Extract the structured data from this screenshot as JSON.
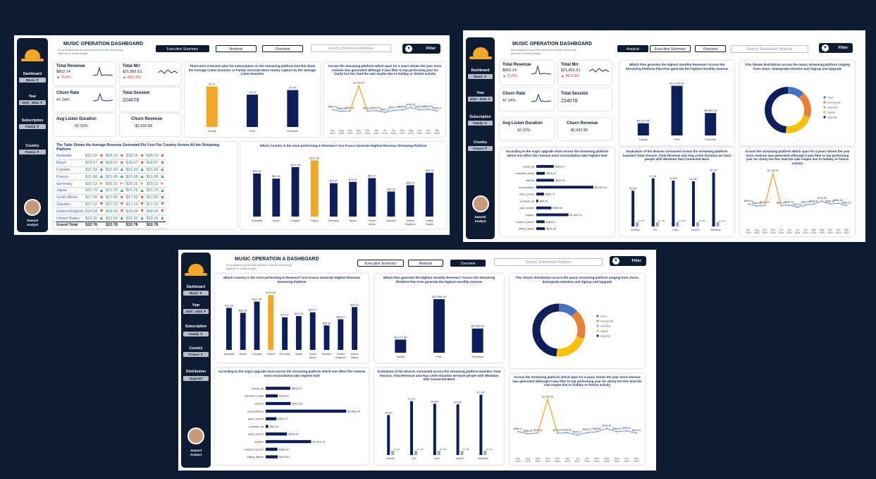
{
  "colors": {
    "navy": "#0d1b33",
    "bar": "#0c1f5c",
    "accent": "#f5a623",
    "line": "#6b8fd6",
    "churn": "#4472c4",
    "downgrade": "#ed7d31",
    "retention": "#a5a5a5",
    "signup": "#ffc000",
    "upgrade": "#0c1f5c"
  },
  "sidebar": {
    "dashboard_label": "Dashboard",
    "dashboard_value": "Music ▼",
    "year_label": "Year",
    "year_value": "2020 - 2024 ▼",
    "subscription_label": "Subscription",
    "subscription_value": "Family ▼",
    "country_label": "Country",
    "country_value": "France ▼",
    "distribution_label": "Distribution",
    "distribution_value": "Upgrade",
    "user_first": "Samuel",
    "user_last": "Analyst"
  },
  "header": {
    "title": "MUSIC OPERATION  DASHBOARD",
    "title3": "MUSIC OPERATION A DASHBOARD",
    "subtitle": "An analytical report that captures a music streaming platform & drives insight",
    "tab_exec": "Executive Summary",
    "tab_analysis": "Analysis",
    "tab_overview": "Overview",
    "search_placeholder": "Search, Dashboard, Analysis",
    "filter_label": "Filter"
  },
  "kpi": {
    "total_revenue_label": "Total Revenue",
    "total_revenue_value": "$852.14",
    "total_revenue_change": "▲ 71.6%",
    "total_mrr_label": "Total Mrr",
    "total_mrr_value": "$21,891.61",
    "total_mrr_change": "▲ 4113.4%",
    "churn_rate_label": "Churn Rate",
    "churn_rate_value": "47.14%",
    "total_session_label": "Total Session",
    "total_session_value": "224078",
    "avg_listen_label": "Avg Listen Duration",
    "avg_listen_value": "92.32%",
    "churn_revenue_label": "Churn Revenue",
    "churn_revenue_value": "-$2,432.86"
  },
  "charts": {
    "plan_avg": {
      "title": "There were 3 Section plan for subscription on the streaming platform but this show the Average Listen Duration i.e Family Generate More money capture by the Average Listen Duration",
      "categories": [
        "Family",
        "Free",
        "Premium"
      ],
      "values": [
        95.91,
        76.63,
        87.42
      ],
      "labels": [
        "95.91",
        "76.63",
        "87.42"
      ],
      "highlight": 0
    },
    "trend": {
      "title": "Across the streaming platform which span for 4 years shows the year more revenue was generated although it was filter to top performing year for clarity but Dec lead the sale maybe due to holiday or festive activity",
      "x": [
        "Apr 2024",
        "Aug 2024",
        "Dec 2024",
        "Dec 2024",
        "Feb 2024",
        "Jan 2024",
        "Jul 2024",
        "Jun 2024",
        "Mar 2024",
        "May 2024",
        "Nov 2024",
        "Oct 2024",
        "Sep 2024"
      ],
      "values": [
        659.41,
        586.36,
        609.4,
        1763.04,
        604.02,
        620.2,
        541.01,
        624.37,
        655.5,
        764.36,
        656.46,
        684.53,
        605.19
      ],
      "labels": [
        "$659.41",
        "$586.36",
        "$609.40",
        "$1,763.04",
        "$604.02",
        "$620.20",
        "$541.01",
        "$624.37",
        "$655.50",
        "$764.36",
        "$656.46",
        "$684.53",
        "$605.19"
      ]
    },
    "country": {
      "title": "Which Country is the most performing in Revenue? Ans France Generate Highest Revenue Streaming Platform",
      "categories": [
        "Australia",
        "Brazil",
        "Canada",
        "France",
        "Germany",
        "Japan",
        "South Africa",
        "Sweden",
        "United Kingdom",
        "United States"
      ],
      "values": [
        93.36,
        82.36,
        107.36,
        121.84,
        72.47,
        75.29,
        83.47,
        54.33,
        68.14,
        95.16
      ],
      "labels": [
        "$93.36",
        "$82.36",
        "$107.36",
        "$121.84",
        "$72.47",
        "$75.29",
        "$83.47",
        "$54.33",
        "$68.14",
        "$95.16"
      ],
      "highlight": 3
    },
    "country_table": {
      "title": "The Table Shows the Average Revenue Generated Per User Per Country Across All the Streaming Platform",
      "rows": [
        {
          "name": "Australia",
          "v": "$18.19",
          "dir": "down"
        },
        {
          "name": "Brazil",
          "v": "$18.57",
          "dir": "down"
        },
        {
          "name": "Canada",
          "v": "$21.43",
          "dir": "up"
        },
        {
          "name": "France",
          "v": "$21.68",
          "dir": "up"
        },
        {
          "name": "Germany",
          "v": "$20.12",
          "dir": "mid"
        },
        {
          "name": "Japan",
          "v": "$21.79",
          "dir": "up"
        },
        {
          "name": "South Africa",
          "v": "$17.49",
          "dir": "down"
        },
        {
          "name": "Sweden",
          "v": "$17.12",
          "dir": "down"
        },
        {
          "name": "United Kingdom",
          "v": "$18.04",
          "dir": "down"
        },
        {
          "name": "United States",
          "v": "$22.20",
          "dir": "up"
        }
      ],
      "grand_label": "Grand Total",
      "grand_value": "$22.78"
    },
    "monthly": {
      "title": "Which Plan generate the highest monthly Revenue? Across the Streaming Platform Plan Free generate the highest monthly revenue",
      "categories": [
        "Family",
        "Free",
        "Premium"
      ],
      "values": [
        3177.56,
        12958.96,
        5855.09
      ],
      "labels": [
        "$3,177.56",
        "$12,958.96",
        "$5,855.09"
      ]
    },
    "distribution": {
      "title": "This Shows distribution across the music streaming platform ranging from churn, downgrade,retention and Signup and Upgrade",
      "labels": [
        "churn",
        "downgrade",
        "retention",
        "signup",
        "upgrade"
      ],
      "values": [
        12,
        18,
        0.5,
        21,
        48.5
      ]
    },
    "upgrade": {
      "title": "According to the major upgrade done across the streaming platform which one affect the revenue most reconciliation take highest lead",
      "categories": [
        "social_ad",
        "retention_email",
        "referral",
        "reconciliation",
        "price_promo",
        "podcast_ad",
        "paid_search",
        "organic",
        "content_launch",
        "billing_failure"
      ],
      "values": [
        809.27,
        394.67,
        819.25,
        2648.24,
        354.71,
        84.92,
        698.4,
        1493.74,
        384.67,
        394.63
      ],
      "labels": [
        "$809.27",
        "$394.67",
        "$819.25",
        "$2,648.24",
        "$354.71",
        "$84.92",
        "$698.40",
        "$1,493.74",
        "$384.67",
        "$394.63"
      ]
    },
    "devices": {
      "title": "Evaluation of the devices connected across the streaming platform basedon Total Session, Total Revenue and Avg Listen Duration we have people with Windows that Connected Most",
      "categories": [
        "Android",
        "iOS",
        "Linux",
        "macOS",
        "Windows"
      ],
      "sessions": [
        35020,
        47111,
        44920,
        44320,
        52787
      ],
      "session_labels": [
        "35,020",
        "47,111",
        "44,920",
        "44,320",
        "52,787"
      ],
      "revenue": [
        1787,
        1780,
        1780,
        1780,
        1740
      ],
      "revenue_labels": [
        "$1,787",
        "$1,780",
        "$1,780",
        "$1,780",
        "$1,740"
      ]
    }
  }
}
